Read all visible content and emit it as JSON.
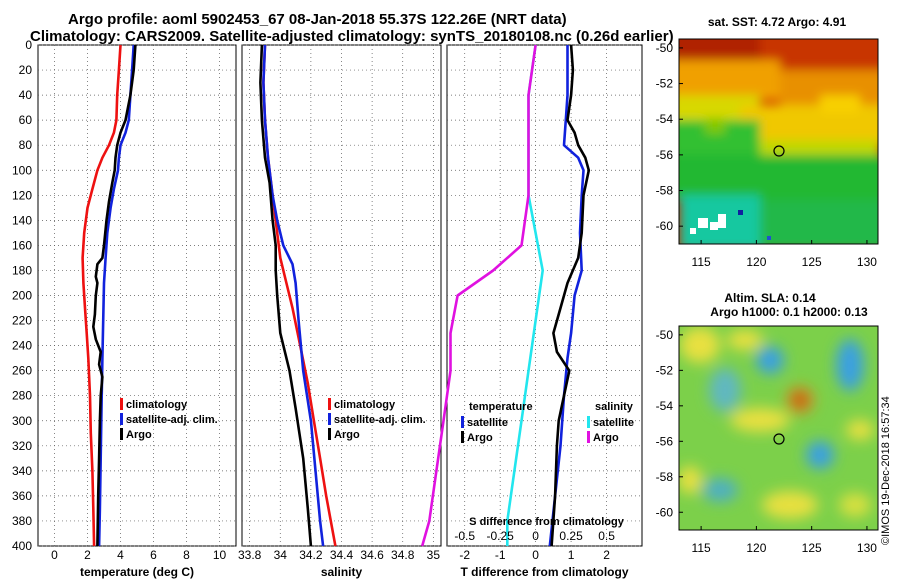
{
  "title": {
    "line1": "Argo profile: aoml 5902453_67 08-Jan-2018 55.37S 122.26E (NRT data)",
    "line2": "Climatology: CARS2009. Satellite-adjusted climatology: synTS_20180108.nc (0.26d earlier)"
  },
  "watermark": "©IMOS 19-Dec-2018 16:57:34",
  "colors": {
    "red": "#ee1111",
    "blue": "#1122dd",
    "black": "#000000",
    "cyan": "#22e6ee",
    "magenta": "#e011e0"
  },
  "chart_data": [
    {
      "type": "line",
      "xlabel": "temperature (deg C)",
      "ylabel": "",
      "xlim": [
        -1,
        11
      ],
      "ylim": [
        400,
        0
      ],
      "xticks": [
        "0",
        "2",
        "4",
        "6",
        "8",
        "10"
      ],
      "yticks": [
        "0",
        "20",
        "40",
        "60",
        "80",
        "100",
        "120",
        "140",
        "160",
        "180",
        "200",
        "220",
        "240",
        "260",
        "280",
        "300",
        "320",
        "340",
        "360",
        "380",
        "400"
      ],
      "grid": true,
      "legend": {
        "position": "center-right",
        "entries": [
          "climatology",
          "satellite-adj. clim.",
          "Argo"
        ]
      },
      "series": [
        {
          "name": "climatology",
          "color": "red",
          "points": [
            [
              4.0,
              0
            ],
            [
              3.9,
              20
            ],
            [
              3.8,
              40
            ],
            [
              3.75,
              60
            ],
            [
              3.6,
              70
            ],
            [
              3.3,
              80
            ],
            [
              2.9,
              90
            ],
            [
              2.6,
              100
            ],
            [
              2.3,
              115
            ],
            [
              2.0,
              130
            ],
            [
              1.8,
              150
            ],
            [
              1.7,
              170
            ],
            [
              1.75,
              190
            ],
            [
              1.85,
              210
            ],
            [
              1.95,
              230
            ],
            [
              2.05,
              250
            ],
            [
              2.15,
              280
            ],
            [
              2.2,
              310
            ],
            [
              2.3,
              340
            ],
            [
              2.35,
              370
            ],
            [
              2.4,
              400
            ]
          ]
        },
        {
          "name": "satellite-adj. clim.",
          "color": "blue",
          "points": [
            [
              4.8,
              0
            ],
            [
              4.7,
              20
            ],
            [
              4.6,
              40
            ],
            [
              4.5,
              60
            ],
            [
              4.3,
              70
            ],
            [
              4.0,
              80
            ],
            [
              3.9,
              90
            ],
            [
              3.85,
              100
            ],
            [
              3.6,
              115
            ],
            [
              3.4,
              130
            ],
            [
              3.2,
              150
            ],
            [
              3.1,
              170
            ],
            [
              3.0,
              190
            ],
            [
              2.95,
              220
            ],
            [
              2.9,
              250
            ],
            [
              2.85,
              290
            ],
            [
              2.8,
              330
            ],
            [
              2.75,
              370
            ],
            [
              2.7,
              400
            ]
          ]
        },
        {
          "name": "Argo",
          "color": "black",
          "points": [
            [
              4.9,
              0
            ],
            [
              4.8,
              20
            ],
            [
              4.6,
              40
            ],
            [
              4.3,
              60
            ],
            [
              4.0,
              70
            ],
            [
              3.8,
              80
            ],
            [
              3.7,
              90
            ],
            [
              3.65,
              100
            ],
            [
              3.5,
              110
            ],
            [
              3.3,
              125
            ],
            [
              3.15,
              140
            ],
            [
              3.0,
              160
            ],
            [
              2.9,
              170
            ],
            [
              2.6,
              175
            ],
            [
              2.5,
              185
            ],
            [
              2.6,
              190
            ],
            [
              2.5,
              200
            ],
            [
              2.45,
              215
            ],
            [
              2.35,
              225
            ],
            [
              2.5,
              235
            ],
            [
              2.8,
              245
            ],
            [
              2.7,
              255
            ],
            [
              2.9,
              265
            ],
            [
              2.8,
              280
            ],
            [
              2.75,
              300
            ],
            [
              2.7,
              330
            ],
            [
              2.65,
              360
            ],
            [
              2.6,
              400
            ]
          ]
        }
      ]
    },
    {
      "type": "line",
      "xlabel": "salinity",
      "xlim": [
        33.75,
        35.05
      ],
      "ylim": [
        400,
        0
      ],
      "xticks": [
        "33.8",
        "34",
        "34.2",
        "34.4",
        "34.6",
        "34.8",
        "35"
      ],
      "grid": true,
      "legend": {
        "position": "center-right",
        "entries": [
          "climatology",
          "satellite-adj. clim.",
          "Argo"
        ]
      },
      "series": [
        {
          "name": "climatology",
          "color": "red",
          "points": [
            [
              33.9,
              0
            ],
            [
              33.89,
              30
            ],
            [
              33.9,
              60
            ],
            [
              33.92,
              90
            ],
            [
              33.95,
              120
            ],
            [
              33.98,
              150
            ],
            [
              34.0,
              170
            ],
            [
              34.04,
              190
            ],
            [
              34.08,
              210
            ],
            [
              34.13,
              240
            ],
            [
              34.18,
              270
            ],
            [
              34.22,
              300
            ],
            [
              34.26,
              330
            ],
            [
              34.3,
              360
            ],
            [
              34.33,
              380
            ],
            [
              34.36,
              400
            ]
          ]
        },
        {
          "name": "satellite-adj. clim.",
          "color": "blue",
          "points": [
            [
              33.9,
              0
            ],
            [
              33.89,
              30
            ],
            [
              33.9,
              60
            ],
            [
              33.92,
              90
            ],
            [
              33.95,
              120
            ],
            [
              33.98,
              140
            ],
            [
              34.02,
              160
            ],
            [
              34.08,
              175
            ],
            [
              34.1,
              190
            ],
            [
              34.12,
              220
            ],
            [
              34.15,
              260
            ],
            [
              34.2,
              300
            ],
            [
              34.23,
              340
            ],
            [
              34.26,
              380
            ],
            [
              34.28,
              400
            ]
          ]
        },
        {
          "name": "Argo",
          "color": "black",
          "points": [
            [
              33.88,
              0
            ],
            [
              33.87,
              30
            ],
            [
              33.88,
              60
            ],
            [
              33.9,
              90
            ],
            [
              33.93,
              110
            ],
            [
              33.95,
              140
            ],
            [
              33.97,
              160
            ],
            [
              33.97,
              180
            ],
            [
              33.98,
              200
            ],
            [
              34.0,
              230
            ],
            [
              34.06,
              260
            ],
            [
              34.1,
              290
            ],
            [
              34.15,
              330
            ],
            [
              34.18,
              370
            ],
            [
              34.2,
              400
            ]
          ]
        }
      ]
    },
    {
      "type": "line",
      "xlabel": "T difference from climatology",
      "xlabel_top": "S difference from climatology",
      "xlim": [
        -2.5,
        3
      ],
      "ylim": [
        400,
        0
      ],
      "xticks": [
        "-2",
        "-1",
        "0",
        "1",
        "2"
      ],
      "xticks_top": [
        "-0.5",
        "-0.25",
        "0",
        "0.25",
        "0.5"
      ],
      "grid": true,
      "legend": {
        "position": "center",
        "temperature_title": "temperature",
        "salinity_title": "salinity",
        "entries": [
          "satellite",
          "Argo"
        ]
      },
      "series": [
        {
          "name": "T satellite",
          "color": "blue",
          "points": [
            [
              0.9,
              0
            ],
            [
              0.9,
              20
            ],
            [
              0.9,
              40
            ],
            [
              0.85,
              60
            ],
            [
              0.8,
              80
            ],
            [
              1.2,
              90
            ],
            [
              1.35,
              100
            ],
            [
              1.3,
              120
            ],
            [
              1.25,
              150
            ],
            [
              1.3,
              180
            ],
            [
              1.1,
              200
            ],
            [
              1.0,
              230
            ],
            [
              0.9,
              250
            ],
            [
              0.8,
              280
            ],
            [
              0.7,
              320
            ],
            [
              0.55,
              360
            ],
            [
              0.4,
              400
            ]
          ]
        },
        {
          "name": "T Argo",
          "color": "black",
          "points": [
            [
              1.0,
              0
            ],
            [
              1.05,
              20
            ],
            [
              1.0,
              40
            ],
            [
              0.9,
              60
            ],
            [
              1.1,
              70
            ],
            [
              1.2,
              80
            ],
            [
              1.4,
              90
            ],
            [
              1.5,
              100
            ],
            [
              1.35,
              120
            ],
            [
              1.3,
              150
            ],
            [
              1.2,
              170
            ],
            [
              0.9,
              190
            ],
            [
              0.7,
              210
            ],
            [
              0.5,
              230
            ],
            [
              0.6,
              245
            ],
            [
              0.95,
              260
            ],
            [
              0.8,
              280
            ],
            [
              0.65,
              300
            ],
            [
              0.6,
              320
            ],
            [
              0.55,
              360
            ],
            [
              0.45,
              400
            ]
          ]
        },
        {
          "name": "S satellite",
          "color": "cyan",
          "points": [
            [
              0.0,
              0
            ],
            [
              -0.05,
              40
            ],
            [
              -0.05,
              80
            ],
            [
              -0.05,
              120
            ],
            [
              0.0,
              150
            ],
            [
              0.05,
              180
            ],
            [
              0.0,
              220
            ],
            [
              -0.05,
              260
            ],
            [
              -0.1,
              300
            ],
            [
              -0.15,
              340
            ],
            [
              -0.2,
              380
            ],
            [
              -0.2,
              400
            ]
          ]
        },
        {
          "name": "S Argo",
          "color": "magenta",
          "points": [
            [
              0.0,
              0
            ],
            [
              -0.05,
              40
            ],
            [
              -0.05,
              80
            ],
            [
              -0.05,
              120
            ],
            [
              -0.1,
              160
            ],
            [
              -0.3,
              180
            ],
            [
              -0.55,
              200
            ],
            [
              -0.6,
              230
            ],
            [
              -0.6,
              260
            ],
            [
              -0.65,
              300
            ],
            [
              -0.7,
              340
            ],
            [
              -0.75,
              380
            ],
            [
              -0.8,
              400
            ]
          ]
        }
      ]
    },
    {
      "type": "heatmap",
      "title": "sat. SST: 4.72 Argo: 4.91",
      "xlim": [
        113,
        131
      ],
      "ylim": [
        -61,
        -49.5
      ],
      "xticks": [
        "115",
        "120",
        "125",
        "130"
      ],
      "yticks": [
        "-50",
        "-52",
        "-54",
        "-56",
        "-58",
        "-60"
      ],
      "marker": {
        "lon": 122.26,
        "lat": -55.37
      }
    },
    {
      "type": "heatmap",
      "title": "Altim. SLA: 0.14",
      "subtitle": "Argo h1000: 0.1 h2000: 0.13",
      "xlim": [
        113,
        131
      ],
      "ylim": [
        -61,
        -49.5
      ],
      "xticks": [
        "115",
        "120",
        "125",
        "130"
      ],
      "yticks": [
        "-50",
        "-52",
        "-54",
        "-56",
        "-58",
        "-60"
      ],
      "marker": {
        "lon": 122.26,
        "lat": -55.37
      }
    }
  ]
}
